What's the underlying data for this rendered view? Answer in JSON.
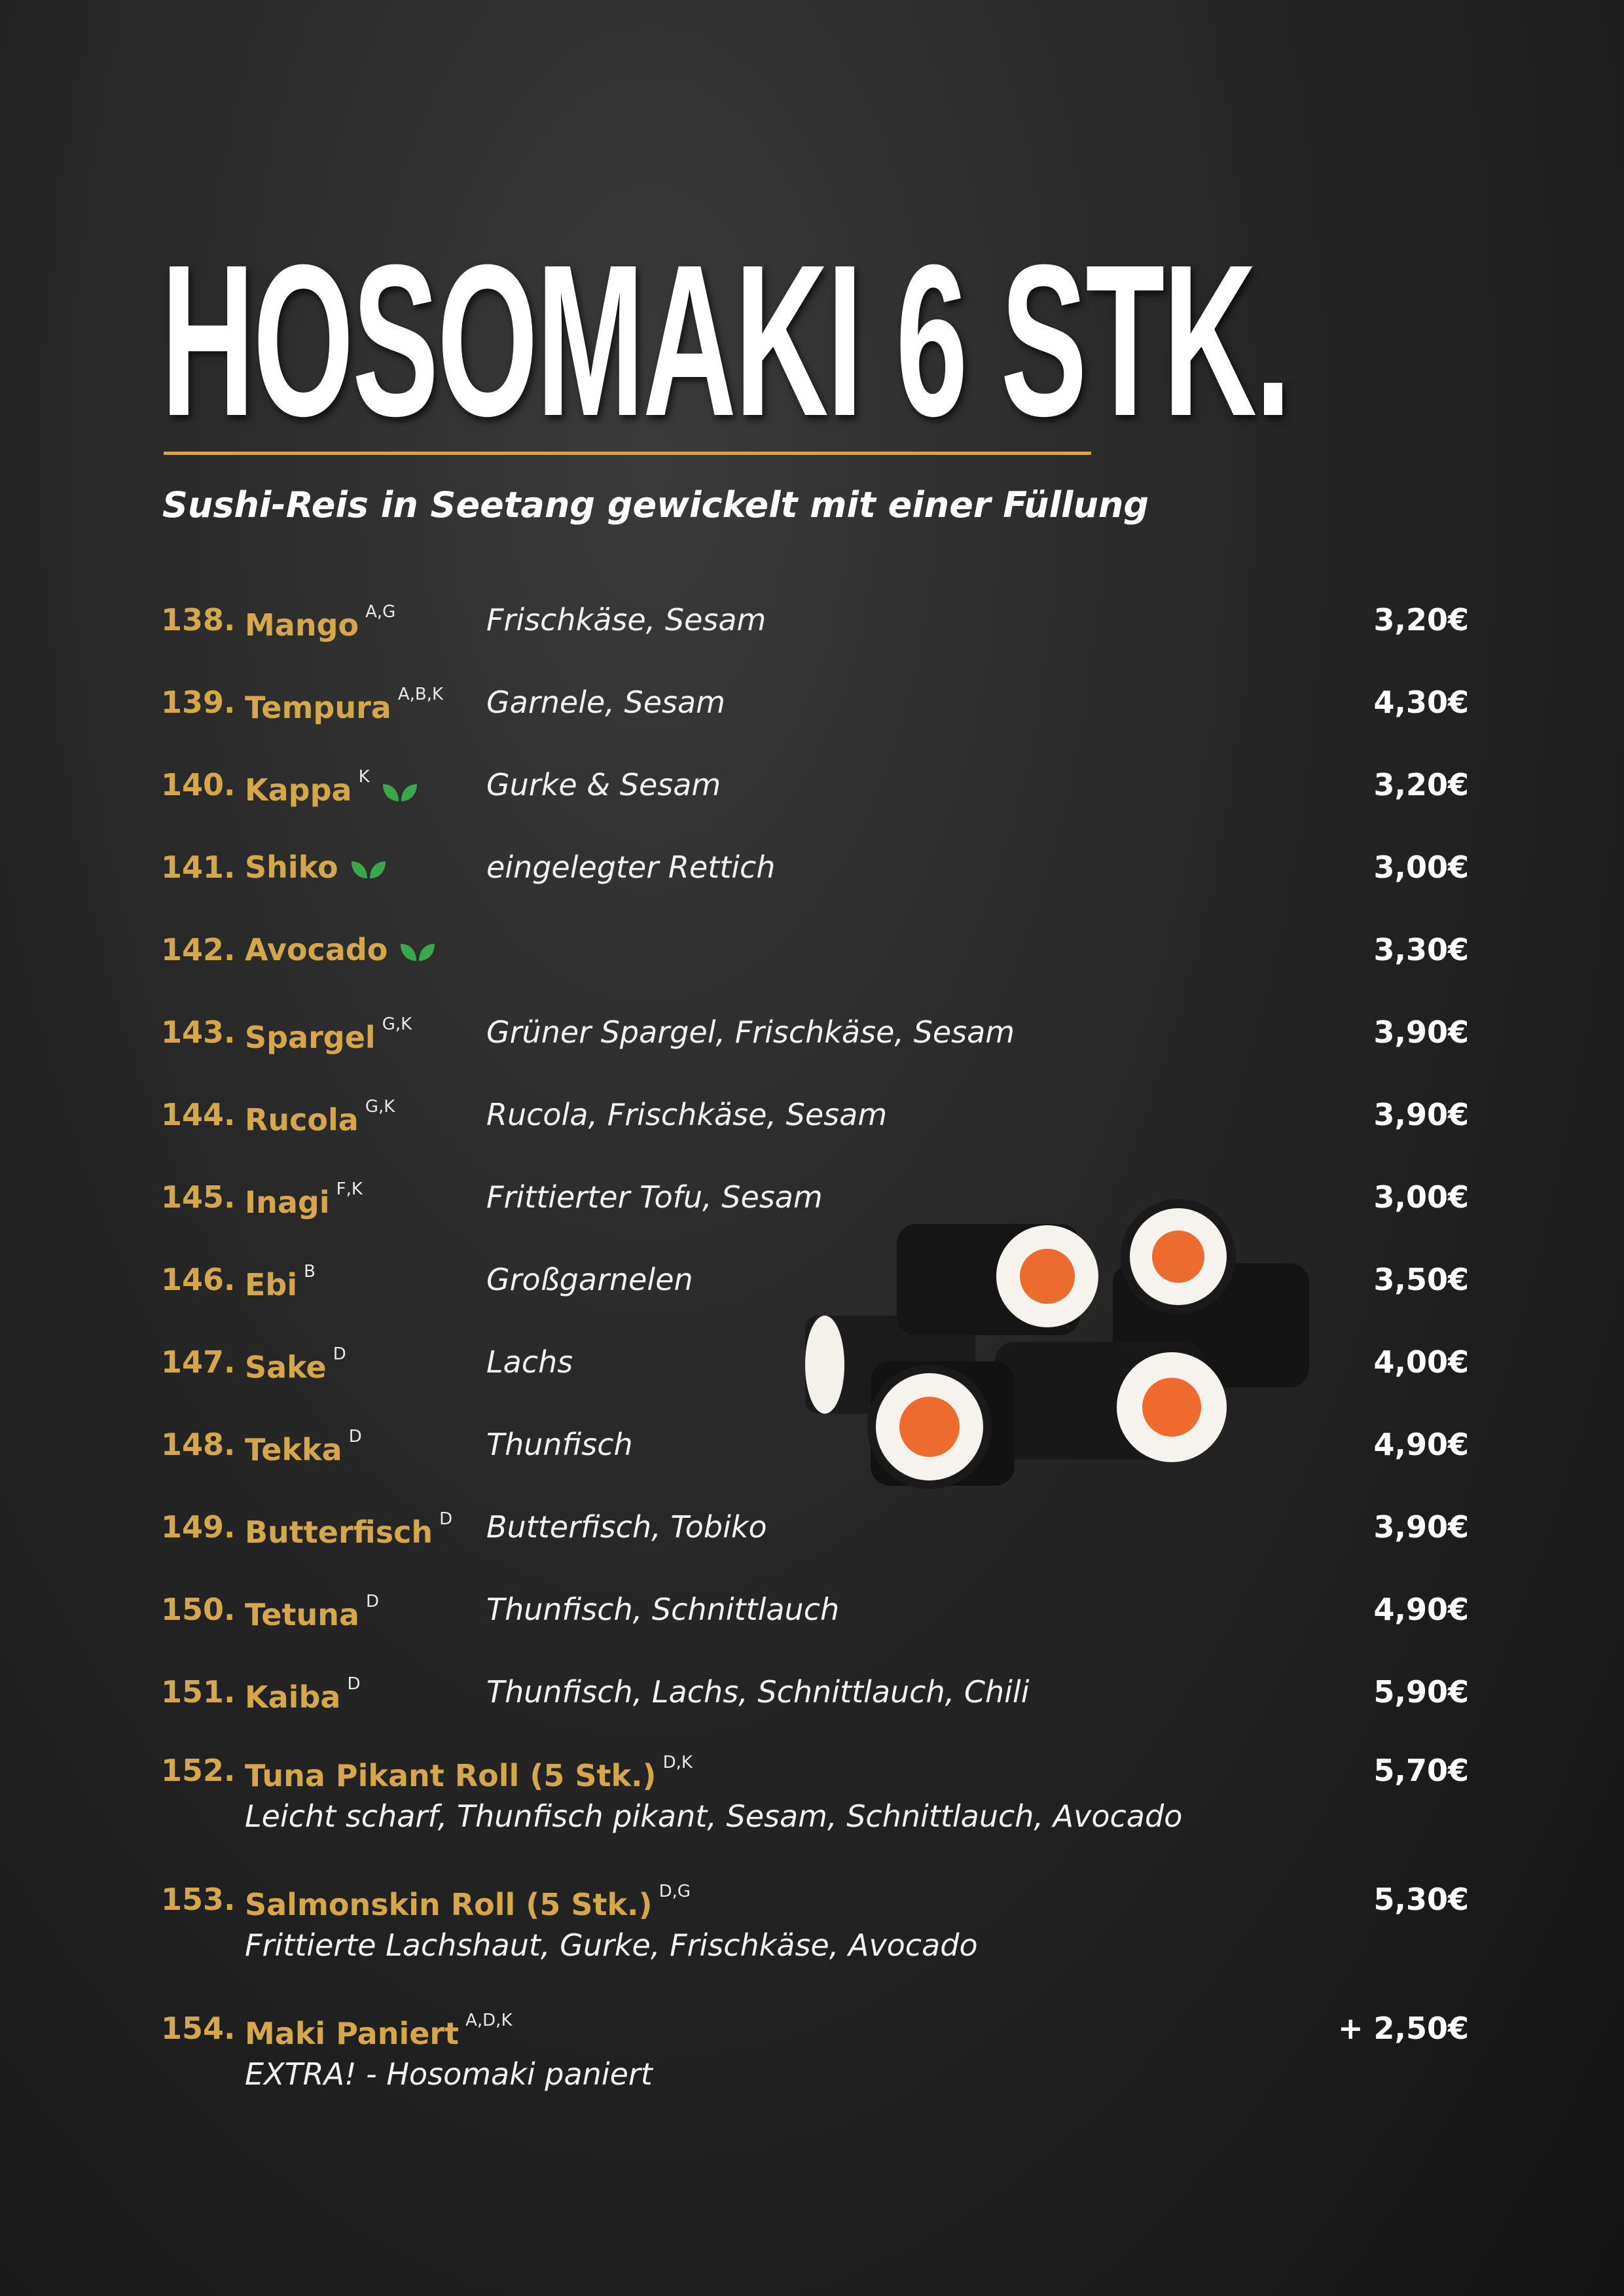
{
  "header": {
    "title": "HOSOMAKI 6 STK.",
    "subtitle": "Sushi-Reis in Seetang gewickelt mit einer Füllung"
  },
  "items": [
    {
      "number": "138.",
      "name": "Mango",
      "allergens": "A,G",
      "description": "Frischkäse, Sesam",
      "price": "3,20€"
    },
    {
      "number": "139.",
      "name": "Tempura",
      "allergens": "A,B,K",
      "description": "Garnele, Sesam",
      "price": "4,30€"
    },
    {
      "number": "140.",
      "name": "Kappa",
      "allergens": "K",
      "vegan": true,
      "description": "Gurke & Sesam",
      "price": "3,20€"
    },
    {
      "number": "141.",
      "name": "Shiko",
      "vegan": true,
      "description": "eingelegter Rettich",
      "price": "3,00€"
    },
    {
      "number": "142.",
      "name": "Avocado",
      "vegan": true,
      "price": "3,30€"
    },
    {
      "number": "143.",
      "name": "Spargel",
      "allergens": "G,K",
      "description": "Grüner Spargel, Frischkäse, Sesam",
      "price": "3,90€"
    },
    {
      "number": "144.",
      "name": "Rucola",
      "allergens": "G,K",
      "description": "Rucola, Frischkäse, Sesam",
      "price": "3,90€"
    },
    {
      "number": "145.",
      "name": "Inagi",
      "allergens": "F,K",
      "description": "Frittierter Tofu, Sesam",
      "price": "3,00€"
    },
    {
      "number": "146.",
      "name": "Ebi",
      "allergens": "B",
      "description": "Großgarnelen",
      "price": "3,50€"
    },
    {
      "number": "147.",
      "name": "Sake",
      "allergens": "D",
      "description": "Lachs",
      "price": "4,00€"
    },
    {
      "number": "148.",
      "name": "Tekka",
      "allergens": "D",
      "description": "Thunfisch",
      "price": "4,90€"
    },
    {
      "number": "149.",
      "name": "Butterfisch",
      "allergens": "D",
      "description": "Butterfisch, Tobiko",
      "price": "3,90€"
    },
    {
      "number": "150.",
      "name": "Tetuna",
      "allergens": "D",
      "description": "Thunfisch, Schnittlauch",
      "price": "4,90€"
    },
    {
      "number": "151.",
      "name": "Kaiba",
      "allergens": "D",
      "description": "Thunfisch, Lachs, Schnittlauch, Chili",
      "price": "5,90€"
    },
    {
      "number": "152.",
      "name": "Tuna Pikant Roll (5 Stk.)",
      "allergens": "D,K",
      "description": "Leicht scharf, Thunfisch pikant, Sesam, Schnittlauch, Avocado",
      "price": "5,70€"
    },
    {
      "number": "153.",
      "name": "Salmonskin Roll (5 Stk.)",
      "allergens": "D,G",
      "description": "Frittierte Lachshaut, Gurke, Frischkäse, Avocado",
      "price": "5,30€"
    },
    {
      "number": "154.",
      "name": "Maki Paniert",
      "allergens": "A,D,K",
      "description": "EXTRA! - Hosomaki paniert",
      "price": "+ 2,50€"
    }
  ]
}
